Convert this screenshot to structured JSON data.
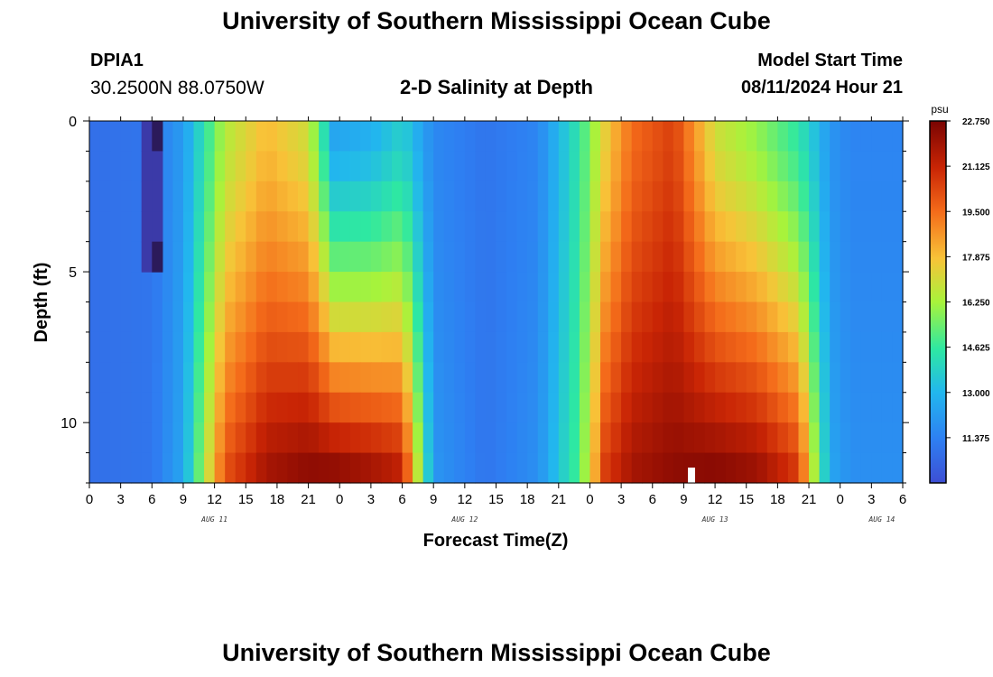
{
  "header": {
    "title": "University of Southern Mississippi Ocean Cube",
    "station_id": "DPIA1",
    "station_coords": "30.2500N  88.0750W",
    "plot_title": "2-D Salinity at Depth",
    "model_start_label": "Model Start Time",
    "model_start_value": "08/11/2024 Hour 21"
  },
  "footer": {
    "title": "University of Southern Mississippi Ocean Cube"
  },
  "chart_data": {
    "type": "heatmap",
    "xlabel": "Forecast Time(Z)",
    "ylabel": "Depth (ft)",
    "ylim": [
      0,
      12
    ],
    "yticks": [
      0,
      5,
      10
    ],
    "xtick_labels": [
      "0",
      "3",
      "6",
      "9",
      "12",
      "15",
      "18",
      "21",
      "0",
      "3",
      "6",
      "9",
      "12",
      "15",
      "18",
      "21",
      "0",
      "3",
      "6",
      "9",
      "12",
      "15",
      "18",
      "21",
      "0",
      "3",
      "6"
    ],
    "date_labels": [
      {
        "label": "AUG 11",
        "hour_index": 12
      },
      {
        "label": "AUG 12",
        "hour_index": 36
      },
      {
        "label": "AUG 13",
        "hour_index": 60
      },
      {
        "label": "AUG 14",
        "hour_index": 76
      }
    ],
    "colorbar": {
      "unit": "psu",
      "min": 9.75,
      "max": 22.75,
      "tick_labels": [
        "22.750",
        "21.125",
        "19.500",
        "17.875",
        "16.250",
        "14.625",
        "13.000",
        "11.375"
      ],
      "tick_values": [
        22.75,
        21.125,
        19.5,
        17.875,
        16.25,
        14.625,
        13.0,
        11.375
      ]
    },
    "hours_total": 78,
    "depth_levels": 12,
    "salinity_profile": {
      "hours": [
        0,
        6,
        9,
        13,
        17,
        21,
        23.5,
        27,
        30,
        33,
        38,
        43,
        47,
        49.5,
        52,
        56,
        60,
        64,
        68,
        70,
        71,
        73,
        78
      ],
      "surface_psu": [
        10.8,
        11.0,
        12.2,
        16.5,
        18.0,
        17.0,
        12.5,
        12.8,
        13.8,
        11.6,
        11.0,
        11.5,
        14.5,
        17.5,
        19.5,
        20.5,
        17.0,
        16.0,
        14.5,
        13.0,
        12.0,
        11.5,
        11.5
      ],
      "bottom_psu": [
        10.8,
        11.0,
        12.5,
        20.0,
        21.8,
        22.3,
        22.2,
        21.8,
        21.2,
        12.0,
        11.0,
        11.8,
        15.0,
        20.5,
        21.8,
        22.3,
        22.4,
        22.0,
        20.5,
        15.0,
        12.5,
        11.8,
        11.8
      ]
    }
  }
}
